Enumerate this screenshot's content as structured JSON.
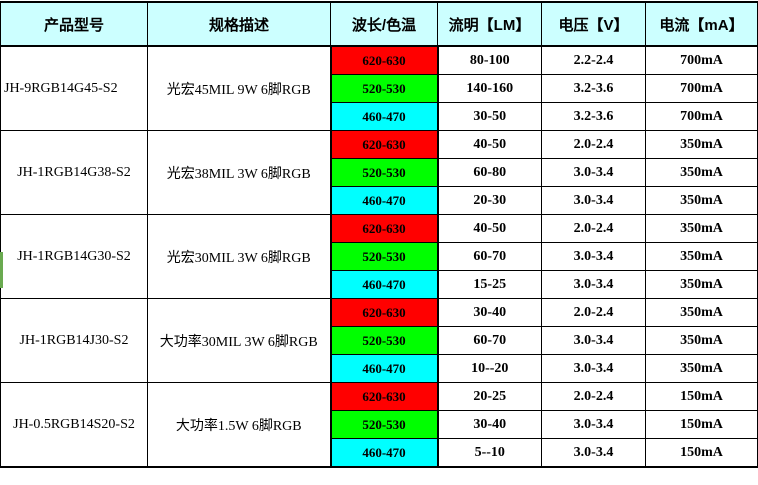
{
  "table": {
    "header_bg": "#ccffff",
    "headers": [
      "产品型号",
      "规格描述",
      "波长/色温",
      "流明【LM】",
      "电压【V】",
      "电流【mA】"
    ],
    "wavelength_colors": {
      "red": "#ff0000",
      "green": "#00ff00",
      "blue": "#00ffff"
    },
    "groups": [
      {
        "model": "JH-9RGB14G45-S2",
        "model_align": "left",
        "spec": "光宏45MIL 9W 6脚RGB",
        "rows": [
          {
            "wavelength": "620-630",
            "color": "#ff0000",
            "lumen": "80-100",
            "voltage": "2.2-2.4",
            "current": "700mA"
          },
          {
            "wavelength": "520-530",
            "color": "#00ff00",
            "lumen": "140-160",
            "voltage": "3.2-3.6",
            "current": "700mA"
          },
          {
            "wavelength": "460-470",
            "color": "#00ffff",
            "lumen": "30-50",
            "voltage": "3.2-3.6",
            "current": "700mA"
          }
        ]
      },
      {
        "model": "JH-1RGB14G38-S2",
        "model_align": "center",
        "spec": "光宏38MIL 3W 6脚RGB",
        "rows": [
          {
            "wavelength": "620-630",
            "color": "#ff0000",
            "lumen": "40-50",
            "voltage": "2.0-2.4",
            "current": "350mA"
          },
          {
            "wavelength": "520-530",
            "color": "#00ff00",
            "lumen": "60-80",
            "voltage": "3.0-3.4",
            "current": "350mA"
          },
          {
            "wavelength": "460-470",
            "color": "#00ffff",
            "lumen": "20-30",
            "voltage": "3.0-3.4",
            "current": "350mA"
          }
        ]
      },
      {
        "model": "JH-1RGB14G30-S2",
        "model_align": "center",
        "spec": "光宏30MIL 3W 6脚RGB",
        "rows": [
          {
            "wavelength": "620-630",
            "color": "#ff0000",
            "lumen": "40-50",
            "voltage": "2.0-2.4",
            "current": "350mA"
          },
          {
            "wavelength": "520-530",
            "color": "#00ff00",
            "lumen": "60-70",
            "voltage": "3.0-3.4",
            "current": "350mA"
          },
          {
            "wavelength": "460-470",
            "color": "#00ffff",
            "lumen": "15-25",
            "voltage": "3.0-3.4",
            "current": "350mA"
          }
        ]
      },
      {
        "model": "JH-1RGB14J30-S2",
        "model_align": "center",
        "spec": "大功率30MIL 3W 6脚RGB",
        "rows": [
          {
            "wavelength": "620-630",
            "color": "#ff0000",
            "lumen": "30-40",
            "voltage": "2.0-2.4",
            "current": "350mA"
          },
          {
            "wavelength": "520-530",
            "color": "#00ff00",
            "lumen": "60-70",
            "voltage": "3.0-3.4",
            "current": "350mA"
          },
          {
            "wavelength": "460-470",
            "color": "#00ffff",
            "lumen": "10--20",
            "voltage": "3.0-3.4",
            "current": "350mA"
          }
        ]
      },
      {
        "model": "JH-0.5RGB14S20-S2",
        "model_align": "center",
        "spec": "大功率1.5W 6脚RGB",
        "rows": [
          {
            "wavelength": "620-630",
            "color": "#ff0000",
            "lumen": "20-25",
            "voltage": "2.0-2.4",
            "current": "150mA"
          },
          {
            "wavelength": "520-530",
            "color": "#00ff00",
            "lumen": "30-40",
            "voltage": "3.0-3.4",
            "current": "150mA"
          },
          {
            "wavelength": "460-470",
            "color": "#00ffff",
            "lumen": "5--10",
            "voltage": "3.0-3.4",
            "current": "150mA"
          }
        ]
      }
    ]
  },
  "edge_marker": {
    "color": "#6aaa50"
  }
}
